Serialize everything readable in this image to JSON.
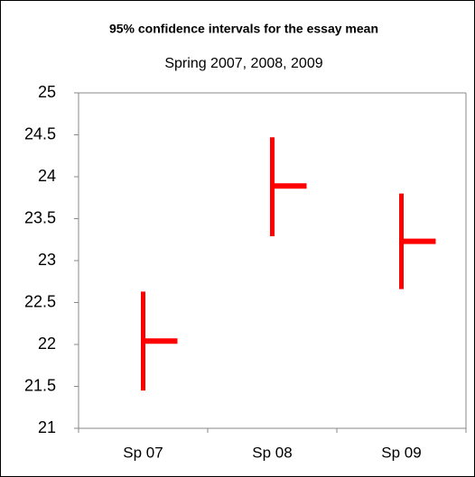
{
  "chart_data": {
    "type": "hilo",
    "title": "95% confidence intervals for the essay mean",
    "subtitle": "Spring 2007, 2008, 2009",
    "categories": [
      "Sp 07",
      "Sp 08",
      "Sp 09"
    ],
    "high": [
      22.63,
      24.47,
      23.8
    ],
    "low": [
      21.45,
      23.29,
      22.66
    ],
    "mean": [
      22.04,
      23.89,
      23.23
    ],
    "color": "#ff0000",
    "ylim": [
      21,
      25
    ],
    "yticks": [
      21,
      21.5,
      22,
      22.5,
      23,
      23.5,
      24,
      24.5,
      25
    ],
    "grid": false
  }
}
